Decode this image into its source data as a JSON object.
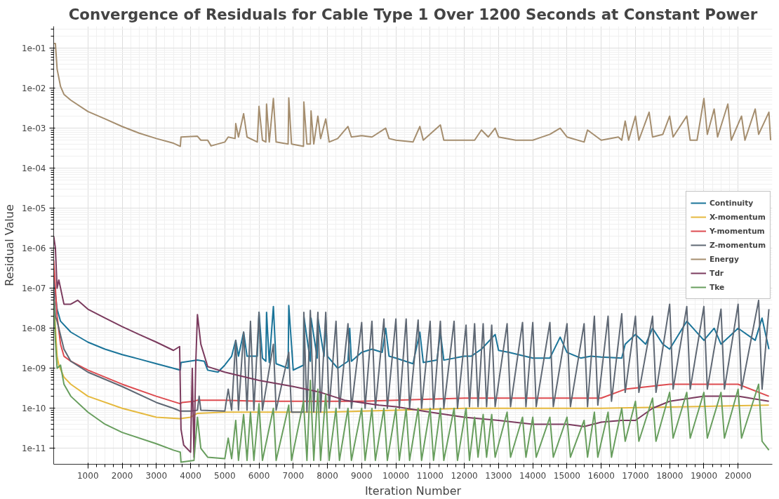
{
  "chart_data": {
    "type": "line",
    "title": "Convergence of Residuals for Cable Type 1 Over 1200 Seconds at Constant Power",
    "xlabel": "Iteration Number",
    "ylabel": "Residual Value",
    "log": "y",
    "grid": true,
    "legend": "right",
    "marker": "none",
    "line_style": "solid",
    "xlim": [
      0,
      21000
    ],
    "ylim": [
      4e-12,
      0.35
    ],
    "xticks": [
      1000,
      2000,
      3000,
      4000,
      5000,
      6000,
      7000,
      8000,
      9000,
      10000,
      11000,
      12000,
      13000,
      14000,
      15000,
      16000,
      17000,
      18000,
      19000,
      20000
    ],
    "yticks": [
      {
        "value": 1e-11,
        "label": "1e-11"
      },
      {
        "value": 1e-10,
        "label": "1e-10"
      },
      {
        "value": 1e-09,
        "label": "1e-09"
      },
      {
        "value": 1e-08,
        "label": "1e-08"
      },
      {
        "value": 1e-07,
        "label": "1e-07"
      },
      {
        "value": 1e-06,
        "label": "1e-06"
      },
      {
        "value": 1e-05,
        "label": "1e-05"
      },
      {
        "value": 0.0001,
        "label": "1e-04"
      },
      {
        "value": 0.001,
        "label": "1e-03"
      },
      {
        "value": 0.01,
        "label": "1e-02"
      },
      {
        "value": 0.1,
        "label": "1e-01"
      }
    ],
    "series": [
      {
        "name": "Continuity",
        "color": "#1a7499",
        "x": [
          0,
          30,
          100,
          200,
          500,
          1000,
          1500,
          2000,
          2500,
          3000,
          3500,
          3700,
          3720,
          4200,
          4400,
          4500,
          4800,
          5000,
          5200,
          5320,
          5400,
          5550,
          5650,
          5950,
          6000,
          6100,
          6200,
          6220,
          6300,
          6420,
          6500,
          6850,
          6870,
          7000,
          7300,
          7310,
          7500,
          7520,
          7700,
          7720,
          7900,
          7950,
          8000,
          8300,
          8600,
          8650,
          8700,
          9000,
          9300,
          9600,
          9700,
          9800,
          10000,
          10500,
          10700,
          10800,
          11200,
          11300,
          11400,
          12000,
          12200,
          12500,
          12900,
          13000,
          13300,
          14000,
          14500,
          14800,
          15000,
          15400,
          15700,
          16000,
          16600,
          16700,
          17000,
          17300,
          17500,
          17800,
          18000,
          18500,
          19000,
          19300,
          19500,
          20000,
          20500,
          20700,
          20900
        ],
        "values": [
          3e-07,
          1e-07,
          3e-08,
          1.5e-08,
          8e-09,
          4.5e-09,
          3e-09,
          2.2e-09,
          1.7e-09,
          1.3e-09,
          1e-09,
          9e-10,
          1.4e-09,
          1.6e-09,
          1.5e-09,
          9e-10,
          8e-10,
          1.2e-09,
          2e-09,
          5e-09,
          2e-09,
          8e-09,
          2e-09,
          2e-09,
          2.5e-08,
          1.8e-09,
          1.5e-09,
          2.5e-08,
          1.4e-09,
          3.5e-08,
          1.3e-09,
          1e-09,
          3.7e-08,
          9e-10,
          1.2e-09,
          2e-08,
          1.5e-09,
          1.8e-08,
          1.8e-09,
          1.8e-08,
          2e-09,
          1.6e-08,
          2e-09,
          1e-09,
          1.5e-09,
          1e-08,
          1.5e-09,
          2.5e-09,
          3e-09,
          2.5e-09,
          1e-08,
          2e-09,
          1.8e-09,
          1.3e-09,
          8e-09,
          1.4e-09,
          1.6e-09,
          8e-09,
          1.6e-09,
          2e-09,
          2e-09,
          3e-09,
          7e-09,
          2.8e-09,
          2.5e-09,
          1.8e-09,
          1.8e-09,
          6e-09,
          2.5e-09,
          1.8e-09,
          2e-09,
          1.9e-09,
          1.8e-09,
          4e-09,
          7e-09,
          4e-09,
          1e-08,
          4e-09,
          3e-09,
          1.5e-08,
          5e-09,
          1e-08,
          4e-09,
          1e-08,
          5e-09,
          1.8e-08,
          3e-09
        ]
      },
      {
        "name": "X-momentum",
        "color": "#e5b93e",
        "x": [
          0,
          50,
          100,
          150,
          300,
          500,
          1000,
          2000,
          3000,
          3700,
          4000,
          4200,
          5000,
          8000,
          10000,
          12000,
          14000,
          16000,
          20900
        ],
        "values": [
          8e-08,
          1e-08,
          2e-09,
          1.2e-09,
          6e-10,
          4e-10,
          2e-10,
          1e-10,
          6e-11,
          5.5e-11,
          6e-11,
          7.5e-11,
          8e-11,
          8e-11,
          9e-11,
          1e-10,
          1e-10,
          1e-10,
          1.2e-10
        ]
      },
      {
        "name": "Y-momentum",
        "color": "#dd4b50",
        "x": [
          0,
          50,
          100,
          200,
          300,
          500,
          1000,
          2000,
          3000,
          3700,
          3750,
          4100,
          4200,
          5000,
          6000,
          7000,
          8000,
          9000,
          10000,
          12000,
          14000,
          16000,
          16700,
          18000,
          20000,
          20900
        ],
        "values": [
          5e-07,
          1e-07,
          2e-08,
          4e-09,
          2e-09,
          1.5e-09,
          9e-10,
          4e-10,
          2e-10,
          1.3e-10,
          1.4e-10,
          1.5e-10,
          1.6e-10,
          1.6e-10,
          1.5e-10,
          1.5e-10,
          1.5e-10,
          1.5e-10,
          1.6e-10,
          1.8e-10,
          1.8e-10,
          1.8e-10,
          3e-10,
          4e-10,
          4e-10,
          2e-10
        ]
      },
      {
        "name": "Z-momentum",
        "color": "#5f6874",
        "x": [
          0,
          50,
          100,
          300,
          500,
          1000,
          2000,
          3000,
          3500,
          3700,
          4000,
          4200,
          4250,
          4300,
          5000,
          5100,
          5200,
          5320,
          5400,
          5550,
          5650,
          5750,
          5850,
          6000,
          6100,
          6420,
          6500,
          6870,
          6950,
          7300,
          7310,
          7400,
          7500,
          7600,
          7720,
          7800,
          7950,
          8050,
          8250,
          8350,
          8600,
          8700,
          9000,
          9100,
          9300,
          9400,
          9650,
          9750,
          10000,
          10100,
          10300,
          10400,
          10650,
          10750,
          11000,
          11100,
          11300,
          11400,
          11700,
          11800,
          12050,
          12150,
          12300,
          12400,
          12550,
          12650,
          12800,
          12900,
          13250,
          13350,
          13700,
          13800,
          14000,
          14100,
          14500,
          14600,
          15000,
          15100,
          15500,
          15600,
          15800,
          15900,
          16200,
          16300,
          16600,
          16700,
          17000,
          17100,
          17500,
          17600,
          18000,
          18100,
          18500,
          18600,
          19000,
          19100,
          19500,
          19600,
          20000,
          20100,
          20600,
          20700,
          20900
        ],
        "values": [
          1e-07,
          2e-08,
          1.5e-08,
          3e-09,
          1.5e-09,
          8e-10,
          3.5e-10,
          1.4e-10,
          1e-10,
          8.5e-11,
          8.5e-11,
          9e-11,
          2e-10,
          9e-11,
          8.5e-11,
          3e-10,
          9e-11,
          5e-09,
          9e-11,
          8e-09,
          9e-11,
          1.5e-08,
          9e-11,
          2.5e-08,
          9e-11,
          4e-09,
          9e-11,
          2.5e-09,
          8e-11,
          8e-11,
          2.5e-08,
          8e-11,
          2.8e-08,
          8e-11,
          2.5e-08,
          8e-11,
          2.5e-08,
          1e-10,
          1.5e-08,
          1e-10,
          1.3e-08,
          1e-10,
          1.4e-08,
          1e-10,
          1.5e-08,
          1e-10,
          1.7e-08,
          1e-10,
          1.7e-08,
          1e-10,
          1.7e-08,
          1e-10,
          1.6e-08,
          1e-10,
          1.5e-08,
          1e-10,
          1.5e-08,
          1e-10,
          1.5e-08,
          1e-10,
          1.2e-08,
          1.1e-10,
          1.3e-08,
          1.1e-10,
          1.3e-08,
          1.1e-10,
          1.2e-08,
          1.1e-10,
          1.3e-08,
          1.1e-10,
          1.4e-08,
          1.1e-10,
          1.4e-08,
          1.1e-10,
          1.4e-08,
          1.1e-10,
          1.3e-08,
          1.1e-10,
          1.3e-08,
          1.1e-10,
          2e-08,
          1.2e-10,
          2e-08,
          1.5e-10,
          2.3e-08,
          2.5e-10,
          2e-08,
          2.5e-10,
          2e-08,
          2.5e-10,
          4e-08,
          3e-10,
          3.5e-08,
          3e-10,
          3.5e-08,
          3e-10,
          3e-08,
          3e-10,
          4e-08,
          3e-10,
          5e-08,
          3e-10,
          3e-08
        ]
      },
      {
        "name": "Energy",
        "color": "#a58e6f",
        "x": [
          0,
          50,
          100,
          200,
          300,
          500,
          1000,
          1500,
          2000,
          2500,
          3000,
          3500,
          3700,
          3720,
          4200,
          4300,
          4500,
          4600,
          5000,
          5100,
          5300,
          5320,
          5400,
          5550,
          5650,
          5950,
          6000,
          6100,
          6200,
          6220,
          6300,
          6420,
          6500,
          6850,
          6870,
          6950,
          7300,
          7310,
          7400,
          7500,
          7520,
          7600,
          7720,
          7800,
          7950,
          8050,
          8300,
          8600,
          8700,
          9000,
          9300,
          9700,
          9800,
          10000,
          10500,
          10700,
          10800,
          11300,
          11400,
          12000,
          12300,
          12500,
          12700,
          12900,
          13000,
          13500,
          14000,
          14500,
          14800,
          15000,
          15500,
          15600,
          16000,
          16500,
          16600,
          16700,
          16800,
          17000,
          17100,
          17400,
          17500,
          17800,
          18000,
          18100,
          18500,
          18600,
          18800,
          19000,
          19100,
          19300,
          19400,
          19700,
          19800,
          20100,
          20200,
          20500,
          20600,
          20900,
          20950
        ],
        "values": [
          0.13,
          0.13,
          0.03,
          0.011,
          0.007,
          0.005,
          0.0026,
          0.0017,
          0.0011,
          0.00075,
          0.00055,
          0.00042,
          0.00035,
          0.0006,
          0.00063,
          0.0005,
          0.0005,
          0.00036,
          0.00045,
          0.0006,
          0.00055,
          0.0013,
          0.0006,
          0.0023,
          0.0006,
          0.00045,
          0.0035,
          0.0005,
          0.00045,
          0.004,
          0.00045,
          0.0055,
          0.00045,
          0.0004,
          0.0057,
          0.0004,
          0.00035,
          0.0045,
          0.0004,
          0.0004,
          0.0027,
          0.0004,
          0.002,
          0.00055,
          0.0017,
          0.00045,
          0.00055,
          0.0011,
          0.0006,
          0.00065,
          0.0006,
          0.001,
          0.00055,
          0.0005,
          0.00045,
          0.0011,
          0.0005,
          0.0012,
          0.0005,
          0.0005,
          0.0005,
          0.0009,
          0.0006,
          0.001,
          0.0006,
          0.0005,
          0.0005,
          0.0007,
          0.001,
          0.0006,
          0.00045,
          0.0009,
          0.0005,
          0.0006,
          0.0005,
          0.0015,
          0.0005,
          0.002,
          0.0005,
          0.0025,
          0.0006,
          0.0007,
          0.002,
          0.0006,
          0.002,
          0.0005,
          0.0005,
          0.0055,
          0.0007,
          0.003,
          0.0006,
          0.004,
          0.0005,
          0.002,
          0.0005,
          0.003,
          0.0007,
          0.0025,
          0.0005
        ]
      },
      {
        "name": "Tdr",
        "color": "#7b3b5e",
        "x": [
          0,
          50,
          100,
          150,
          300,
          500,
          700,
          1000,
          1500,
          2000,
          2500,
          3000,
          3500,
          3680,
          3720,
          3800,
          4000,
          4050,
          4100,
          4150,
          4200,
          4300,
          4500,
          5000,
          6000,
          7000,
          7800,
          8500,
          9500,
          10000,
          11000,
          12000,
          13000,
          14000,
          15000,
          15500,
          16000,
          16600,
          17000,
          17500,
          18000,
          19000,
          20000,
          20900
        ],
        "values": [
          2e-06,
          1e-06,
          1e-07,
          1.6e-07,
          4e-08,
          4e-08,
          5e-08,
          3e-08,
          1.8e-08,
          1.1e-08,
          7e-09,
          4.5e-09,
          2.8e-09,
          3.5e-09,
          3e-11,
          1.2e-11,
          8e-12,
          1e-09,
          6e-12,
          1.2e-09,
          2.2e-08,
          4e-09,
          1.1e-09,
          8e-10,
          5e-10,
          3.5e-10,
          2.5e-10,
          1.6e-10,
          1.2e-10,
          1.1e-10,
          8e-11,
          6e-11,
          5e-11,
          4e-11,
          4e-11,
          3.5e-11,
          4.5e-11,
          5e-11,
          5e-11,
          1e-10,
          1.5e-10,
          2e-10,
          2e-10,
          1.5e-10
        ]
      },
      {
        "name": "Tke",
        "color": "#689e5e",
        "x": [
          0,
          50,
          100,
          200,
          300,
          500,
          1000,
          1500,
          2000,
          3000,
          3500,
          3700,
          3720,
          4100,
          4200,
          4300,
          4500,
          5000,
          5100,
          5200,
          5320,
          5400,
          5550,
          5650,
          5750,
          5850,
          6000,
          6100,
          6420,
          6500,
          6870,
          6950,
          7300,
          7400,
          7500,
          7600,
          7720,
          7800,
          7950,
          8050,
          8250,
          8350,
          8600,
          8700,
          9000,
          9100,
          9300,
          9400,
          9650,
          9750,
          10000,
          10100,
          10300,
          10400,
          10650,
          10750,
          11000,
          11100,
          11300,
          11400,
          11700,
          11800,
          12050,
          12150,
          12300,
          12400,
          12550,
          12650,
          12800,
          12900,
          13250,
          13350,
          13700,
          13800,
          14000,
          14100,
          14500,
          14600,
          15000,
          15100,
          15500,
          15600,
          15800,
          15900,
          16200,
          16300,
          16600,
          16700,
          17000,
          17100,
          17500,
          17600,
          18000,
          18100,
          18500,
          18600,
          19000,
          19100,
          19500,
          19600,
          20000,
          20100,
          20600,
          20700,
          20900
        ],
        "values": [
          5e-08,
          5e-09,
          1e-09,
          1.2e-09,
          4e-10,
          2e-10,
          8e-11,
          4e-11,
          2.5e-11,
          1.3e-11,
          9e-12,
          8e-12,
          4.5e-12,
          5e-12,
          6e-11,
          1e-11,
          6e-12,
          5.5e-12,
          1.8e-11,
          5.5e-12,
          5e-11,
          5e-12,
          7e-11,
          5e-12,
          8e-11,
          5e-12,
          1.3e-10,
          5e-12,
          1e-10,
          5e-12,
          1.2e-10,
          5e-12,
          1.5e-10,
          5e-12,
          5e-10,
          5e-12,
          3e-10,
          5e-12,
          2.3e-10,
          5e-12,
          1e-10,
          5e-12,
          1e-10,
          5e-12,
          1e-10,
          5e-12,
          1e-10,
          5e-12,
          1e-10,
          5e-12,
          1e-10,
          5e-12,
          1e-10,
          5e-12,
          1e-10,
          5e-12,
          1e-10,
          5e-12,
          1e-10,
          5e-12,
          1e-10,
          5e-12,
          1e-10,
          5e-12,
          6e-11,
          6e-12,
          7e-11,
          6e-12,
          7e-11,
          6e-12,
          8e-11,
          6e-12,
          6e-11,
          6e-12,
          6e-11,
          6e-12,
          6e-11,
          6e-12,
          6e-11,
          6e-12,
          5e-11,
          6e-12,
          8e-11,
          6e-12,
          8e-11,
          6e-12,
          1e-10,
          1.5e-11,
          1.5e-10,
          1.5e-11,
          1.8e-10,
          1.5e-11,
          2.5e-10,
          1.8e-11,
          2.5e-10,
          1.8e-11,
          2.5e-10,
          1.8e-11,
          2.5e-10,
          1.8e-11,
          3e-10,
          1.8e-11,
          4e-10,
          1.5e-11,
          9e-12
        ]
      }
    ]
  }
}
